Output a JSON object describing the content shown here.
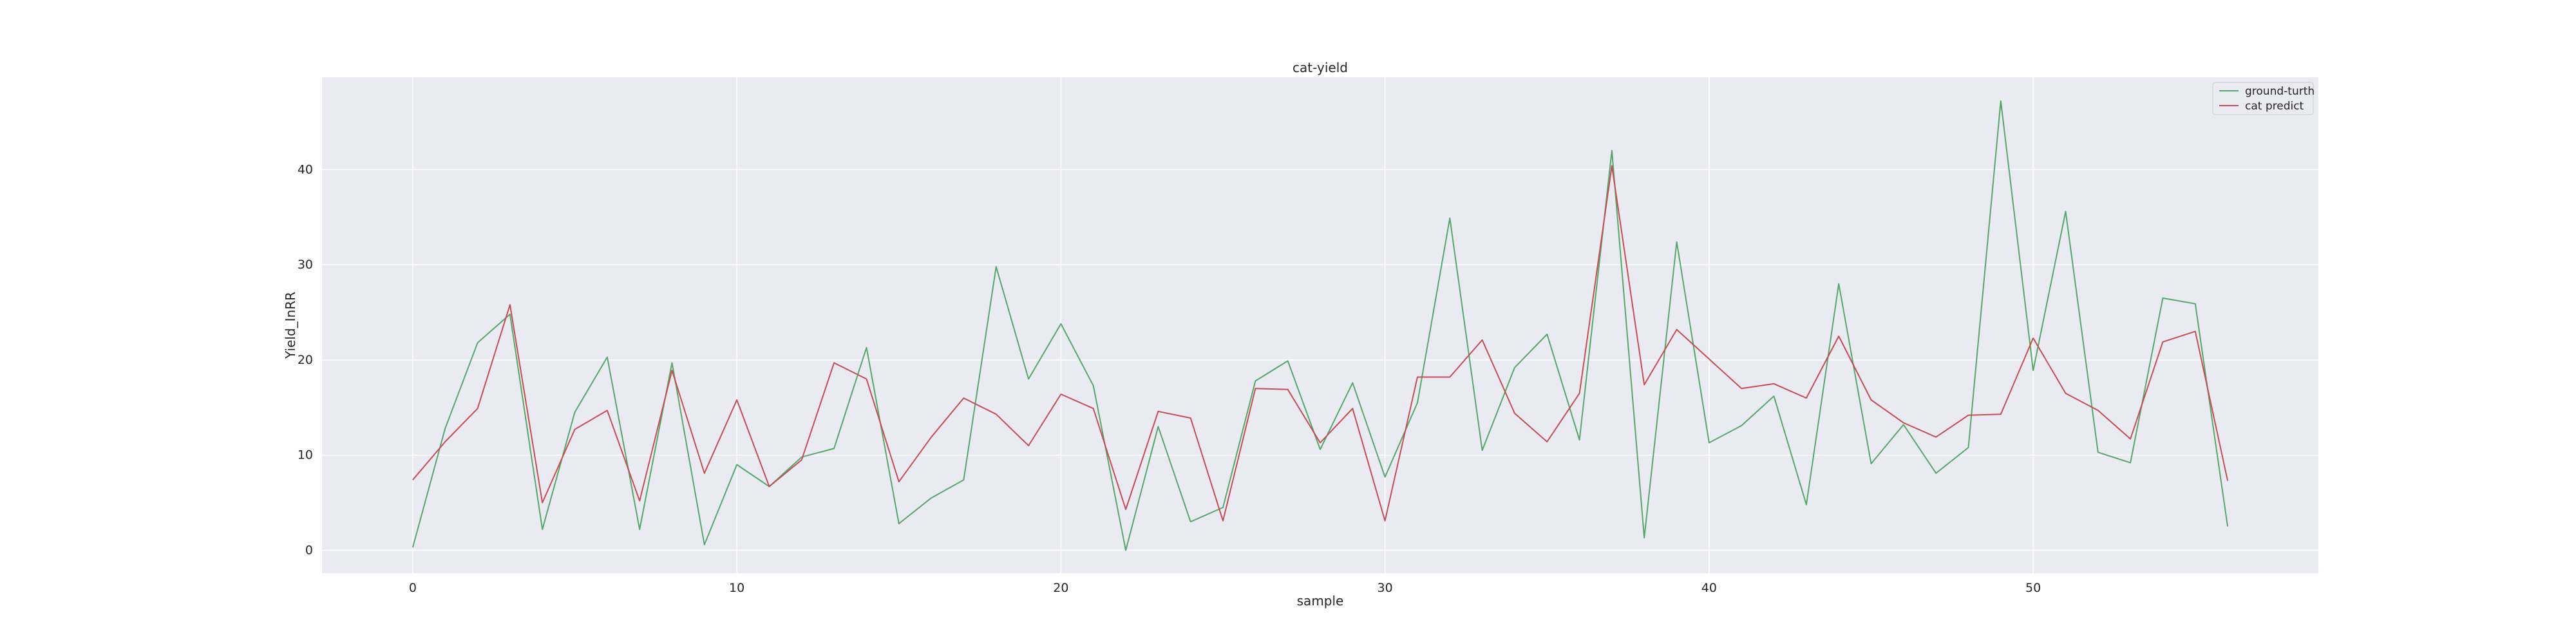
{
  "chart_data": {
    "type": "line",
    "title": "cat-yield",
    "xlabel": "sample",
    "ylabel": "Yield_InRR",
    "xlim": [
      -2.8,
      58.8
    ],
    "ylim": [
      -2.4,
      49.7
    ],
    "xticks": [
      0,
      10,
      20,
      30,
      40,
      50
    ],
    "yticks": [
      0,
      10,
      20,
      30,
      40
    ],
    "grid": true,
    "legend_position": "top-right",
    "background": "#eaeaf2",
    "series": [
      {
        "name": "ground-turth",
        "color": "#55a868",
        "x": [
          0,
          1,
          2,
          3,
          4,
          5,
          6,
          7,
          8,
          9,
          10,
          11,
          12,
          13,
          14,
          15,
          16,
          17,
          18,
          19,
          20,
          21,
          22,
          23,
          24,
          25,
          26,
          27,
          28,
          29,
          30,
          31,
          32,
          33,
          34,
          35,
          36,
          37,
          38,
          39,
          40,
          41,
          42,
          43,
          44,
          45,
          46,
          47,
          48,
          49,
          50,
          51,
          52,
          53,
          54,
          55,
          56
        ],
        "values": [
          0.3,
          12.8,
          21.8,
          24.8,
          2.2,
          14.5,
          20.3,
          2.2,
          19.7,
          0.6,
          9.0,
          6.7,
          9.8,
          10.7,
          21.3,
          2.8,
          5.5,
          7.4,
          29.8,
          18.0,
          23.8,
          17.3,
          0.0,
          13.0,
          3.0,
          4.5,
          17.8,
          19.9,
          10.6,
          17.6,
          7.7,
          15.5,
          34.9,
          10.5,
          19.2,
          22.7,
          11.6,
          42.0,
          1.3,
          32.4,
          11.3,
          13.1,
          16.2,
          4.8,
          28.0,
          9.1,
          13.2,
          8.1,
          10.8,
          47.2,
          18.9,
          35.6,
          10.3,
          9.2,
          26.5,
          25.9,
          2.5
        ]
      },
      {
        "name": "cat predict",
        "color": "#c44e52",
        "x": [
          0,
          1,
          2,
          3,
          4,
          5,
          6,
          7,
          8,
          9,
          10,
          11,
          12,
          13,
          14,
          15,
          16,
          17,
          18,
          19,
          20,
          21,
          22,
          23,
          24,
          25,
          26,
          27,
          28,
          29,
          30,
          31,
          32,
          33,
          34,
          35,
          36,
          37,
          38,
          39,
          40,
          41,
          42,
          43,
          44,
          45,
          46,
          47,
          48,
          49,
          50,
          51,
          52,
          53,
          54,
          55,
          56
        ],
        "values": [
          7.4,
          11.4,
          14.9,
          25.8,
          5.0,
          12.7,
          14.7,
          5.2,
          18.9,
          8.1,
          15.8,
          6.7,
          9.5,
          19.7,
          18.0,
          7.2,
          11.9,
          16.0,
          14.3,
          11.0,
          16.4,
          14.9,
          4.3,
          14.6,
          13.9,
          3.1,
          17.0,
          16.9,
          11.3,
          14.9,
          3.1,
          18.2,
          18.2,
          22.1,
          14.4,
          11.4,
          16.5,
          40.4,
          17.4,
          23.2,
          20.1,
          17.0,
          17.5,
          16.0,
          22.5,
          15.8,
          13.4,
          11.9,
          14.2,
          14.3,
          22.3,
          16.5,
          14.7,
          11.7,
          21.9,
          23.0,
          7.3
        ]
      }
    ]
  }
}
